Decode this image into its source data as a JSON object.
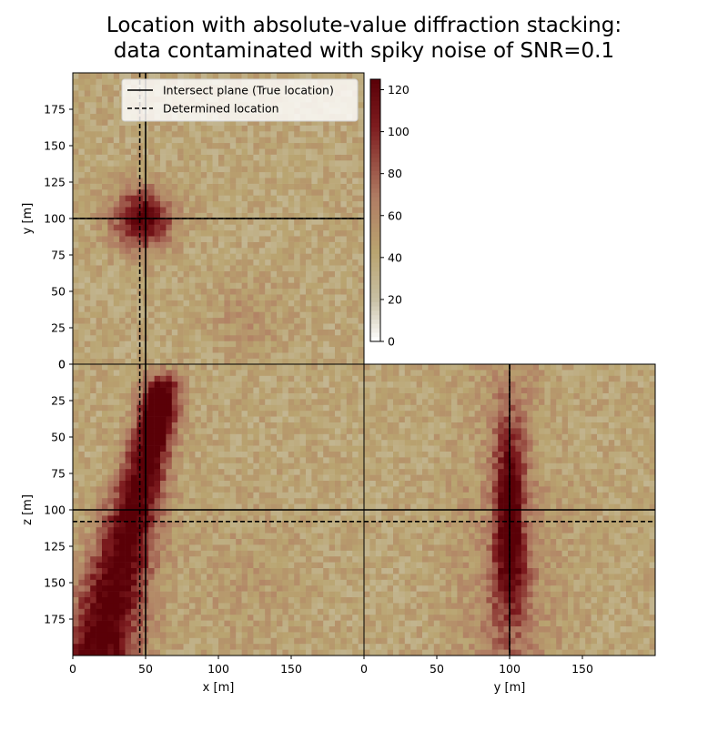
{
  "chart_data": {
    "type": "heatmap",
    "title_lines": [
      "Location with absolute-value diffraction stacking:",
      "data contaminated with spiky noise of SNR=0.1"
    ],
    "colormap_stops": [
      "#ffffff",
      "#c8bfa3",
      "#b9a470",
      "#b07c63",
      "#7d1c1f",
      "#5a0007"
    ],
    "grid_cells": 50,
    "cell_size_m": 4,
    "true_location": {
      "x": 50,
      "y": 100,
      "z": 100
    },
    "determined_location": {
      "x": 46,
      "y": 100,
      "z": 108
    },
    "legend": {
      "solid_label": "Intersect plane (True location)",
      "dashed_label": "Determined location"
    },
    "colorbar": {
      "range": [
        0,
        125
      ],
      "ticks": [
        "0",
        "20",
        "40",
        "60",
        "80",
        "100",
        "120"
      ],
      "tick_values": [
        0,
        20,
        40,
        60,
        80,
        100,
        120
      ]
    },
    "panels": [
      {
        "id": "xy",
        "xlabel": "",
        "ylabel": "y [m]",
        "x_range": [
          0,
          200
        ],
        "y_range": [
          0,
          200
        ],
        "y_ticks": [
          "0",
          "25",
          "50",
          "75",
          "100",
          "125",
          "150",
          "175"
        ],
        "y_tick_values": [
          0,
          25,
          50,
          75,
          100,
          125,
          150,
          175
        ],
        "peak_value": 125
      },
      {
        "id": "xz",
        "xlabel": "x [m]",
        "ylabel": "z [m]",
        "x_range": [
          0,
          200
        ],
        "y_range": [
          0,
          200
        ],
        "x_ticks": [
          "0",
          "50",
          "100",
          "150"
        ],
        "x_tick_values": [
          0,
          50,
          100,
          150
        ],
        "y_ticks": [
          "0",
          "25",
          "50",
          "75",
          "100",
          "125",
          "150",
          "175"
        ],
        "y_tick_values": [
          0,
          25,
          50,
          75,
          100,
          125,
          150,
          175
        ],
        "peak_value": 125
      },
      {
        "id": "yz",
        "xlabel": "y [m]",
        "ylabel": "",
        "x_range": [
          0,
          200
        ],
        "y_range": [
          0,
          200
        ],
        "x_ticks": [
          "0",
          "50",
          "100",
          "150"
        ],
        "x_tick_values": [
          0,
          50,
          100,
          150
        ],
        "peak_value": 125
      }
    ]
  }
}
